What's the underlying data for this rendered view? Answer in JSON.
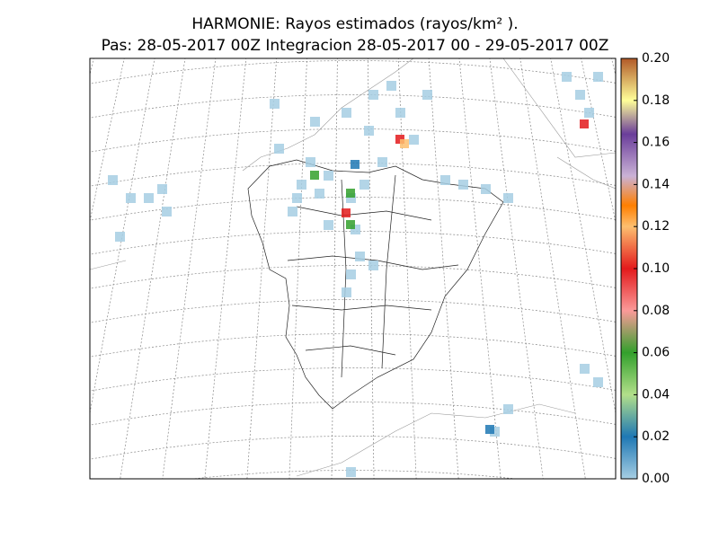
{
  "header": {
    "title": "HARMONIE: Rayos estimados  (rayos/km² ).",
    "subtitle": "Pas: 28-05-2017 00Z Integracion 28-05-2017 00 - 29-05-2017 00Z"
  },
  "colorbar": {
    "lim": [
      0,
      0.2
    ],
    "ticks": [
      {
        "value": 0,
        "label": "0.00"
      },
      {
        "value": 0.02,
        "label": "0.02"
      },
      {
        "value": 0.04,
        "label": "0.04"
      },
      {
        "value": 0.06,
        "label": "0.06"
      },
      {
        "value": 0.08,
        "label": "0.08"
      },
      {
        "value": 0.1,
        "label": "0.10"
      },
      {
        "value": 0.12,
        "label": "0.12"
      },
      {
        "value": 0.14,
        "label": "0.14"
      },
      {
        "value": 0.16,
        "label": "0.16"
      },
      {
        "value": 0.18,
        "label": "0.18"
      },
      {
        "value": 0.2,
        "label": "0.20"
      }
    ]
  }
}
